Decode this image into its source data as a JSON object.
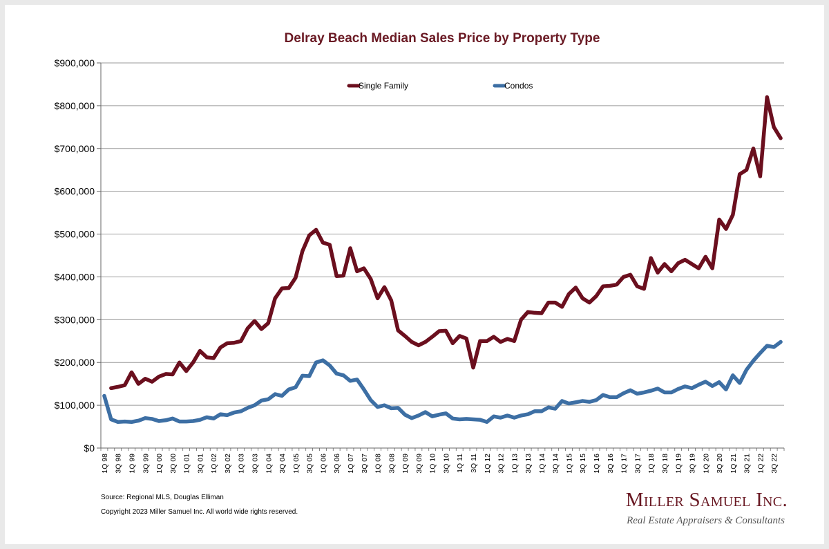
{
  "page": {
    "title": "Delray Beach Median Sales Price by Property Type",
    "source": "Source: Regional MLS, Douglas Elliman",
    "copyright": "Copyright 2023 Miller Samuel Inc.  All world wide rights reserved.",
    "brand_name": "Miller Samuel Inc.",
    "brand_tagline": "Real Estate Appraisers & Consultants"
  },
  "colors": {
    "single_family": "#6b0f1e",
    "condos": "#3d6fa4",
    "title": "#6a1a24",
    "grid": "#9a9a9a"
  },
  "chart_data": {
    "type": "line",
    "title": "Delray Beach Median Sales Price by Property Type",
    "xlabel": "",
    "ylabel": "",
    "ylim": [
      0,
      900000
    ],
    "y_ticks": [
      0,
      100000,
      200000,
      300000,
      400000,
      500000,
      600000,
      700000,
      800000,
      900000
    ],
    "y_tick_labels": [
      "$0",
      "$100,000",
      "$200,000",
      "$300,000",
      "$400,000",
      "$500,000",
      "$600,000",
      "$700,000",
      "$800,000",
      "$900,000"
    ],
    "grid": true,
    "legend": "top-center",
    "x_tick_labels": [
      "1Q 98",
      "3Q 98",
      "1Q 99",
      "3Q 99",
      "1Q 00",
      "3Q 00",
      "1Q 01",
      "3Q 01",
      "1Q 02",
      "3Q 02",
      "1Q 03",
      "3Q 03",
      "1Q 04",
      "3Q 04",
      "1Q 05",
      "3Q 05",
      "1Q 06",
      "3Q 06",
      "1Q 07",
      "3Q 07",
      "1Q 08",
      "3Q 08",
      "1Q 09",
      "3Q 09",
      "1Q 10",
      "3Q 10",
      "1Q 11",
      "3Q 11",
      "1Q 12",
      "3Q 12",
      "1Q 13",
      "3Q 13",
      "1Q 14",
      "3Q 14",
      "1Q 15",
      "3Q 15",
      "1Q 16",
      "3Q 16",
      "1Q 17",
      "3Q 17",
      "1Q 18",
      "3Q 18",
      "1Q 19",
      "3Q 19",
      "1Q 20",
      "3Q 20",
      "1Q 21",
      "3Q 21",
      "1Q 22",
      "3Q 22"
    ],
    "series": [
      {
        "name": "Single Family",
        "values": [
          null,
          140000,
          143000,
          147000,
          177000,
          150000,
          162000,
          155000,
          167000,
          173000,
          172000,
          200000,
          180000,
          200000,
          227000,
          212000,
          210000,
          235000,
          245000,
          246000,
          250000,
          280000,
          297000,
          278000,
          292000,
          350000,
          373000,
          374000,
          398000,
          460000,
          497000,
          510000,
          480000,
          475000,
          402000,
          403000,
          467000,
          413000,
          420000,
          395000,
          350000,
          376000,
          345000,
          275000,
          262000,
          248000,
          240000,
          248000,
          260000,
          273000,
          274000,
          245000,
          262000,
          256000,
          188000,
          250000,
          250000,
          260000,
          248000,
          255000,
          250000,
          300000,
          318000,
          316000,
          315000,
          340000,
          340000,
          330000,
          360000,
          375000,
          350000,
          340000,
          355000,
          378000,
          379000,
          382000,
          400000,
          405000,
          378000,
          372000,
          444000,
          410000,
          430000,
          413000,
          432000,
          440000,
          430000,
          420000,
          447000,
          420000,
          534000,
          512000,
          545000,
          640000,
          650000,
          700000,
          635000,
          820000,
          750000,
          724000
        ]
      },
      {
        "name": "Condos",
        "values": [
          122000,
          67000,
          61000,
          62000,
          61000,
          64000,
          70000,
          68000,
          63000,
          65000,
          69000,
          62000,
          62000,
          63000,
          66000,
          72000,
          69000,
          79000,
          77000,
          83000,
          86000,
          94000,
          100000,
          111000,
          114000,
          126000,
          122000,
          137000,
          142000,
          169000,
          168000,
          200000,
          205000,
          193000,
          174000,
          170000,
          157000,
          160000,
          137000,
          112000,
          96000,
          100000,
          93000,
          94000,
          78000,
          70000,
          76000,
          84000,
          74000,
          78000,
          81000,
          69000,
          67000,
          68000,
          67000,
          66000,
          61000,
          74000,
          71000,
          76000,
          71000,
          76000,
          79000,
          86000,
          86000,
          95000,
          92000,
          110000,
          104000,
          107000,
          110000,
          108000,
          112000,
          124000,
          119000,
          119000,
          128000,
          135000,
          127000,
          130000,
          134000,
          139000,
          130000,
          130000,
          138000,
          144000,
          140000,
          148000,
          155000,
          145000,
          154000,
          137000,
          170000,
          152000,
          183000,
          204000,
          222000,
          239000,
          236000,
          248000
        ]
      }
    ]
  }
}
